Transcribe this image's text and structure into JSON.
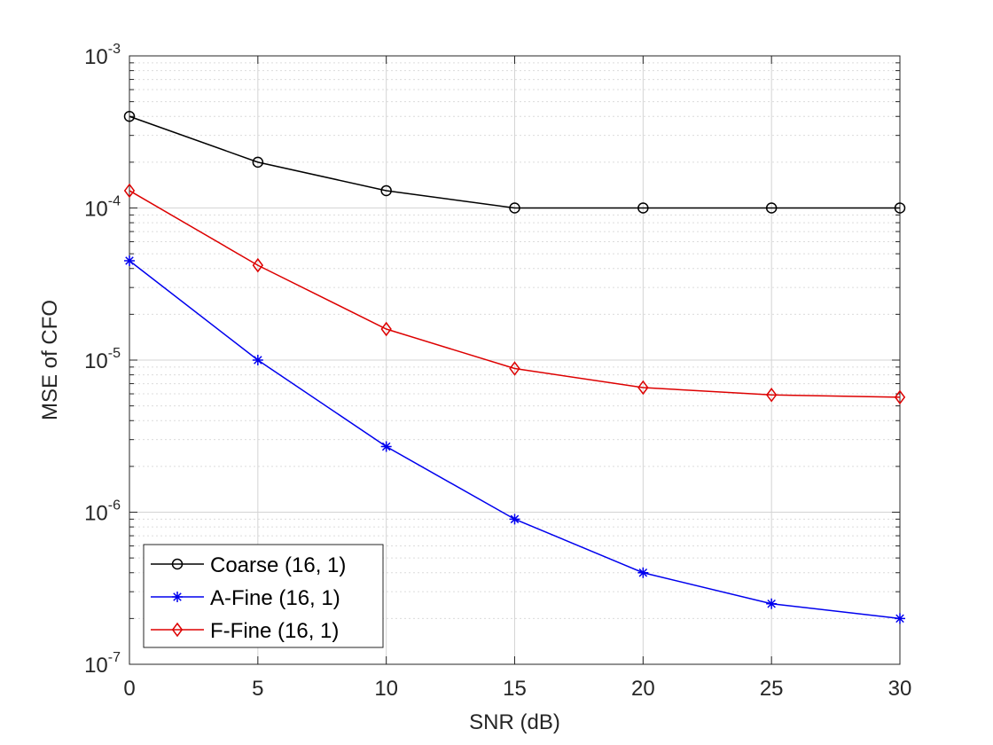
{
  "chart_data": {
    "type": "line",
    "xlabel": "SNR (dB)",
    "ylabel": "MSE of CFO",
    "x": [
      0,
      5,
      10,
      15,
      20,
      25,
      30
    ],
    "xlim": [
      0,
      30
    ],
    "xticks": [
      0,
      5,
      10,
      15,
      20,
      25,
      30
    ],
    "xtick_labels": [
      "0",
      "5",
      "10",
      "15",
      "20",
      "25",
      "30"
    ],
    "yscale": "log",
    "ylim": [
      1e-07,
      0.001
    ],
    "yticks": [
      1e-07,
      1e-06,
      1e-05,
      0.0001,
      0.001
    ],
    "ytick_labels": [
      {
        "base": "10",
        "exp": "-7"
      },
      {
        "base": "10",
        "exp": "-6"
      },
      {
        "base": "10",
        "exp": "-5"
      },
      {
        "base": "10",
        "exp": "-4"
      },
      {
        "base": "10",
        "exp": "-3"
      }
    ],
    "grid": true,
    "legend_location": "bottom-left",
    "series": [
      {
        "name": "Coarse (16, 1)",
        "color": "#000000",
        "marker": "circle",
        "values": [
          0.0004,
          0.0002,
          0.00013,
          0.0001,
          0.0001,
          0.0001,
          0.0001
        ]
      },
      {
        "name": "A-Fine (16, 1)",
        "color": "#0000ee",
        "marker": "asterisk",
        "values": [
          4.5e-05,
          1e-05,
          2.7e-06,
          9e-07,
          4e-07,
          2.5e-07,
          2e-07
        ]
      },
      {
        "name": "F-Fine (16, 1)",
        "color": "#dd0000",
        "marker": "diamond",
        "values": [
          0.00013,
          4.2e-05,
          1.6e-05,
          8.8e-06,
          6.6e-06,
          5.9e-06,
          5.7e-06
        ]
      }
    ]
  }
}
